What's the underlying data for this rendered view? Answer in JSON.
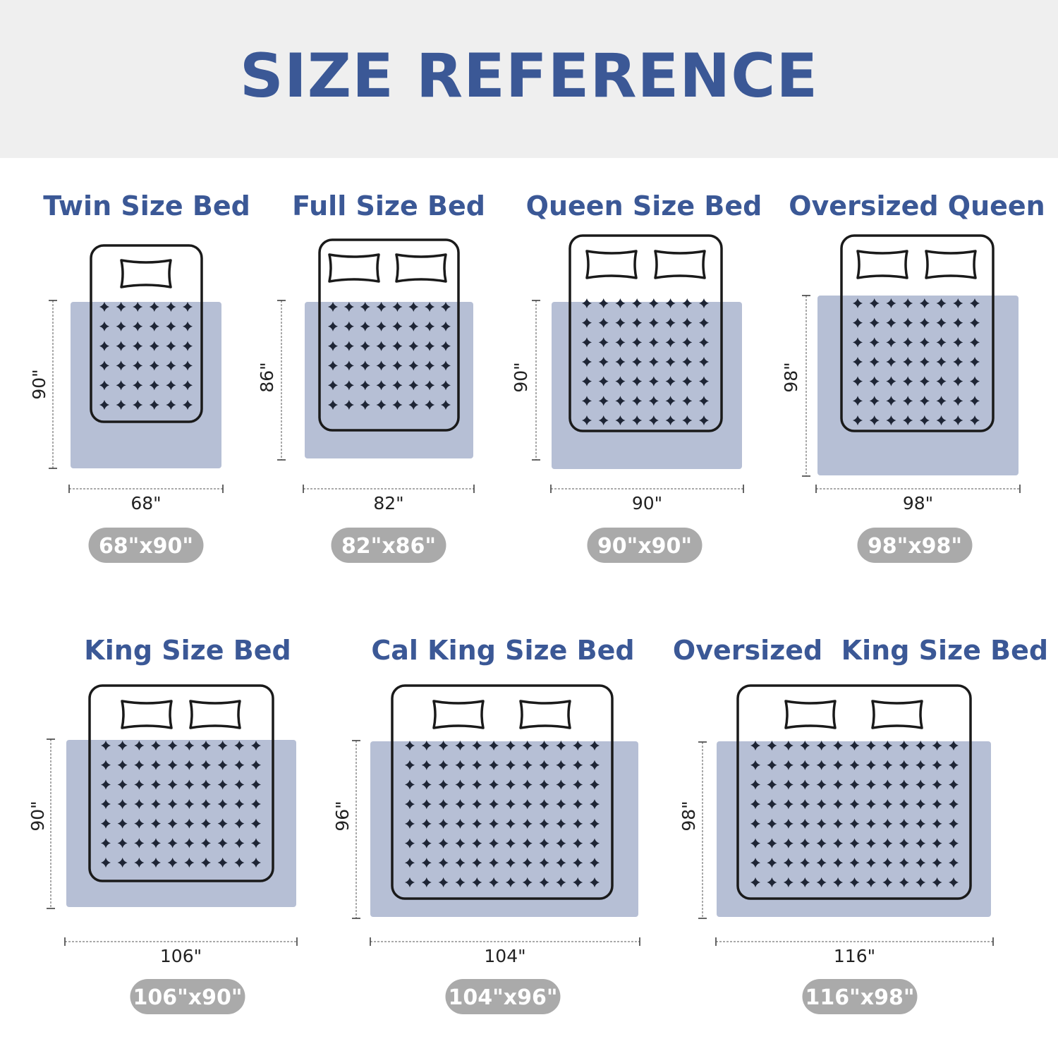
{
  "header": {
    "title": "SIZE REFERENCE"
  },
  "colors": {
    "title": "#3b5896",
    "blanket": "#b4bdd4",
    "badge": "#aaaaaa",
    "outline": "#1a1a1a",
    "star": "#1e2535",
    "header_band": "#efefef"
  },
  "beds": [
    {
      "title": "Twin Size Bed",
      "width": "68\"",
      "length": "90\"",
      "badge": "68\"x90\"",
      "pillows": 1
    },
    {
      "title": "Full Size Bed",
      "width": "82\"",
      "length": "86\"",
      "badge": "82\"x86\"",
      "pillows": 2
    },
    {
      "title": "Queen Size Bed",
      "width": "90\"",
      "length": "90\"",
      "badge": "90\"x90\"",
      "pillows": 2
    },
    {
      "title": "Oversized Queen",
      "width": "98\"",
      "length": "98\"",
      "badge": "98\"x98\"",
      "pillows": 2
    },
    {
      "title": "King Size Bed",
      "width": "106\"",
      "length": "90\"",
      "badge": "106\"x90\"",
      "pillows": 2
    },
    {
      "title": "Cal King Size Bed",
      "width": "104\"",
      "length": "96\"",
      "badge": "104\"x96\"",
      "pillows": 2
    },
    {
      "title": "Oversized  King Size Bed",
      "width": "116\"",
      "length": "98\"",
      "badge": "116\"x98\"",
      "pillows": 2
    }
  ]
}
